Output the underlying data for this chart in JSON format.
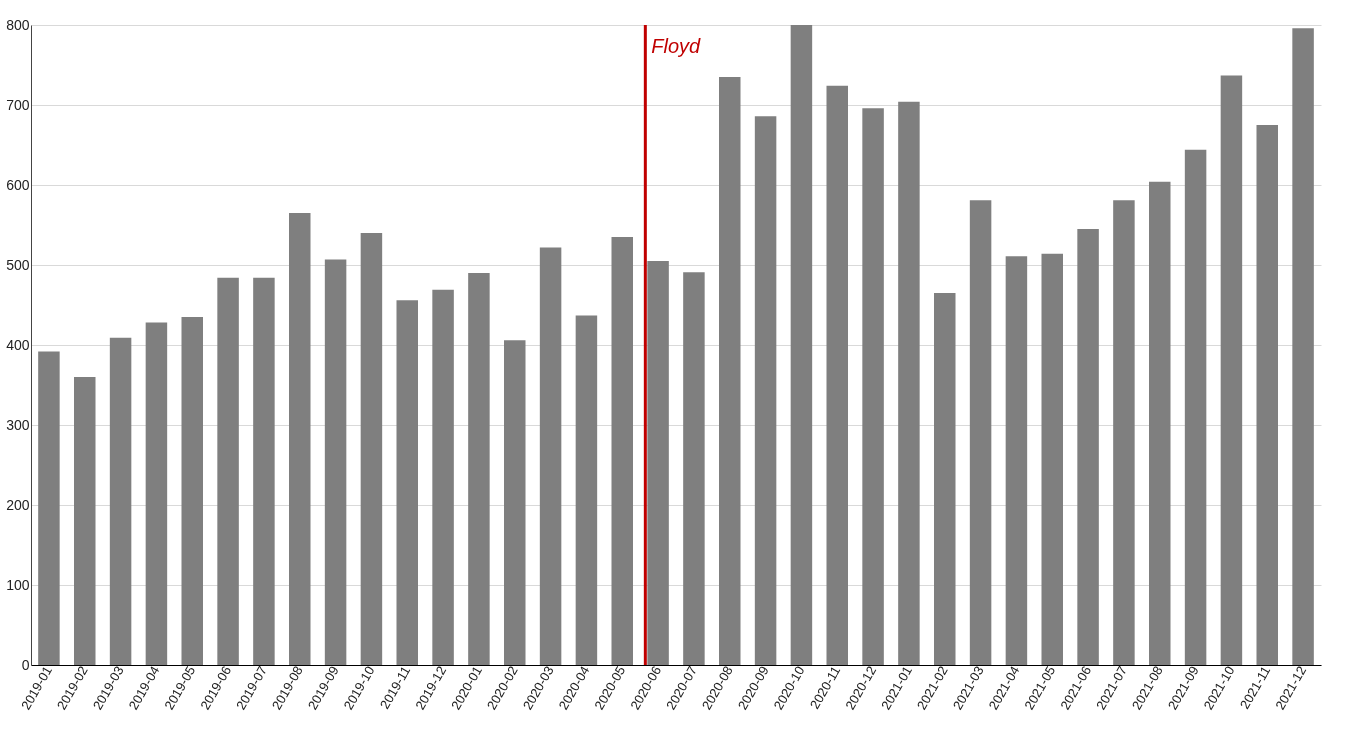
{
  "chart_data": {
    "type": "bar",
    "categories": [
      "2019-01",
      "2019-02",
      "2019-03",
      "2019-04",
      "2019-05",
      "2019-06",
      "2019-07",
      "2019-08",
      "2019-09",
      "2019-10",
      "2019-11",
      "2019-12",
      "2020-01",
      "2020-02",
      "2020-03",
      "2020-04",
      "2020-05",
      "2020-06",
      "2020-07",
      "2020-08",
      "2020-09",
      "2020-10",
      "2020-11",
      "2020-12",
      "2021-01",
      "2021-02",
      "2021-03",
      "2021-04",
      "2021-05",
      "2021-06",
      "2021-07",
      "2021-08",
      "2021-09",
      "2021-10",
      "2021-11",
      "2021-12"
    ],
    "values": [
      392,
      360,
      409,
      428,
      435,
      484,
      484,
      565,
      507,
      540,
      456,
      469,
      490,
      406,
      522,
      437,
      535,
      505,
      491,
      735,
      686,
      800,
      724,
      696,
      704,
      465,
      581,
      511,
      514,
      545,
      581,
      604,
      644,
      737,
      675,
      796
    ],
    "color": "#7f7f7f",
    "ylim": [
      0,
      800
    ],
    "yticks": [
      0,
      100,
      200,
      300,
      400,
      500,
      600,
      700,
      800
    ],
    "grid": "y",
    "ref_lines": [
      {
        "axis": "x",
        "value": "2020-06",
        "label": "Floyd",
        "color": "#c00000"
      }
    ]
  }
}
